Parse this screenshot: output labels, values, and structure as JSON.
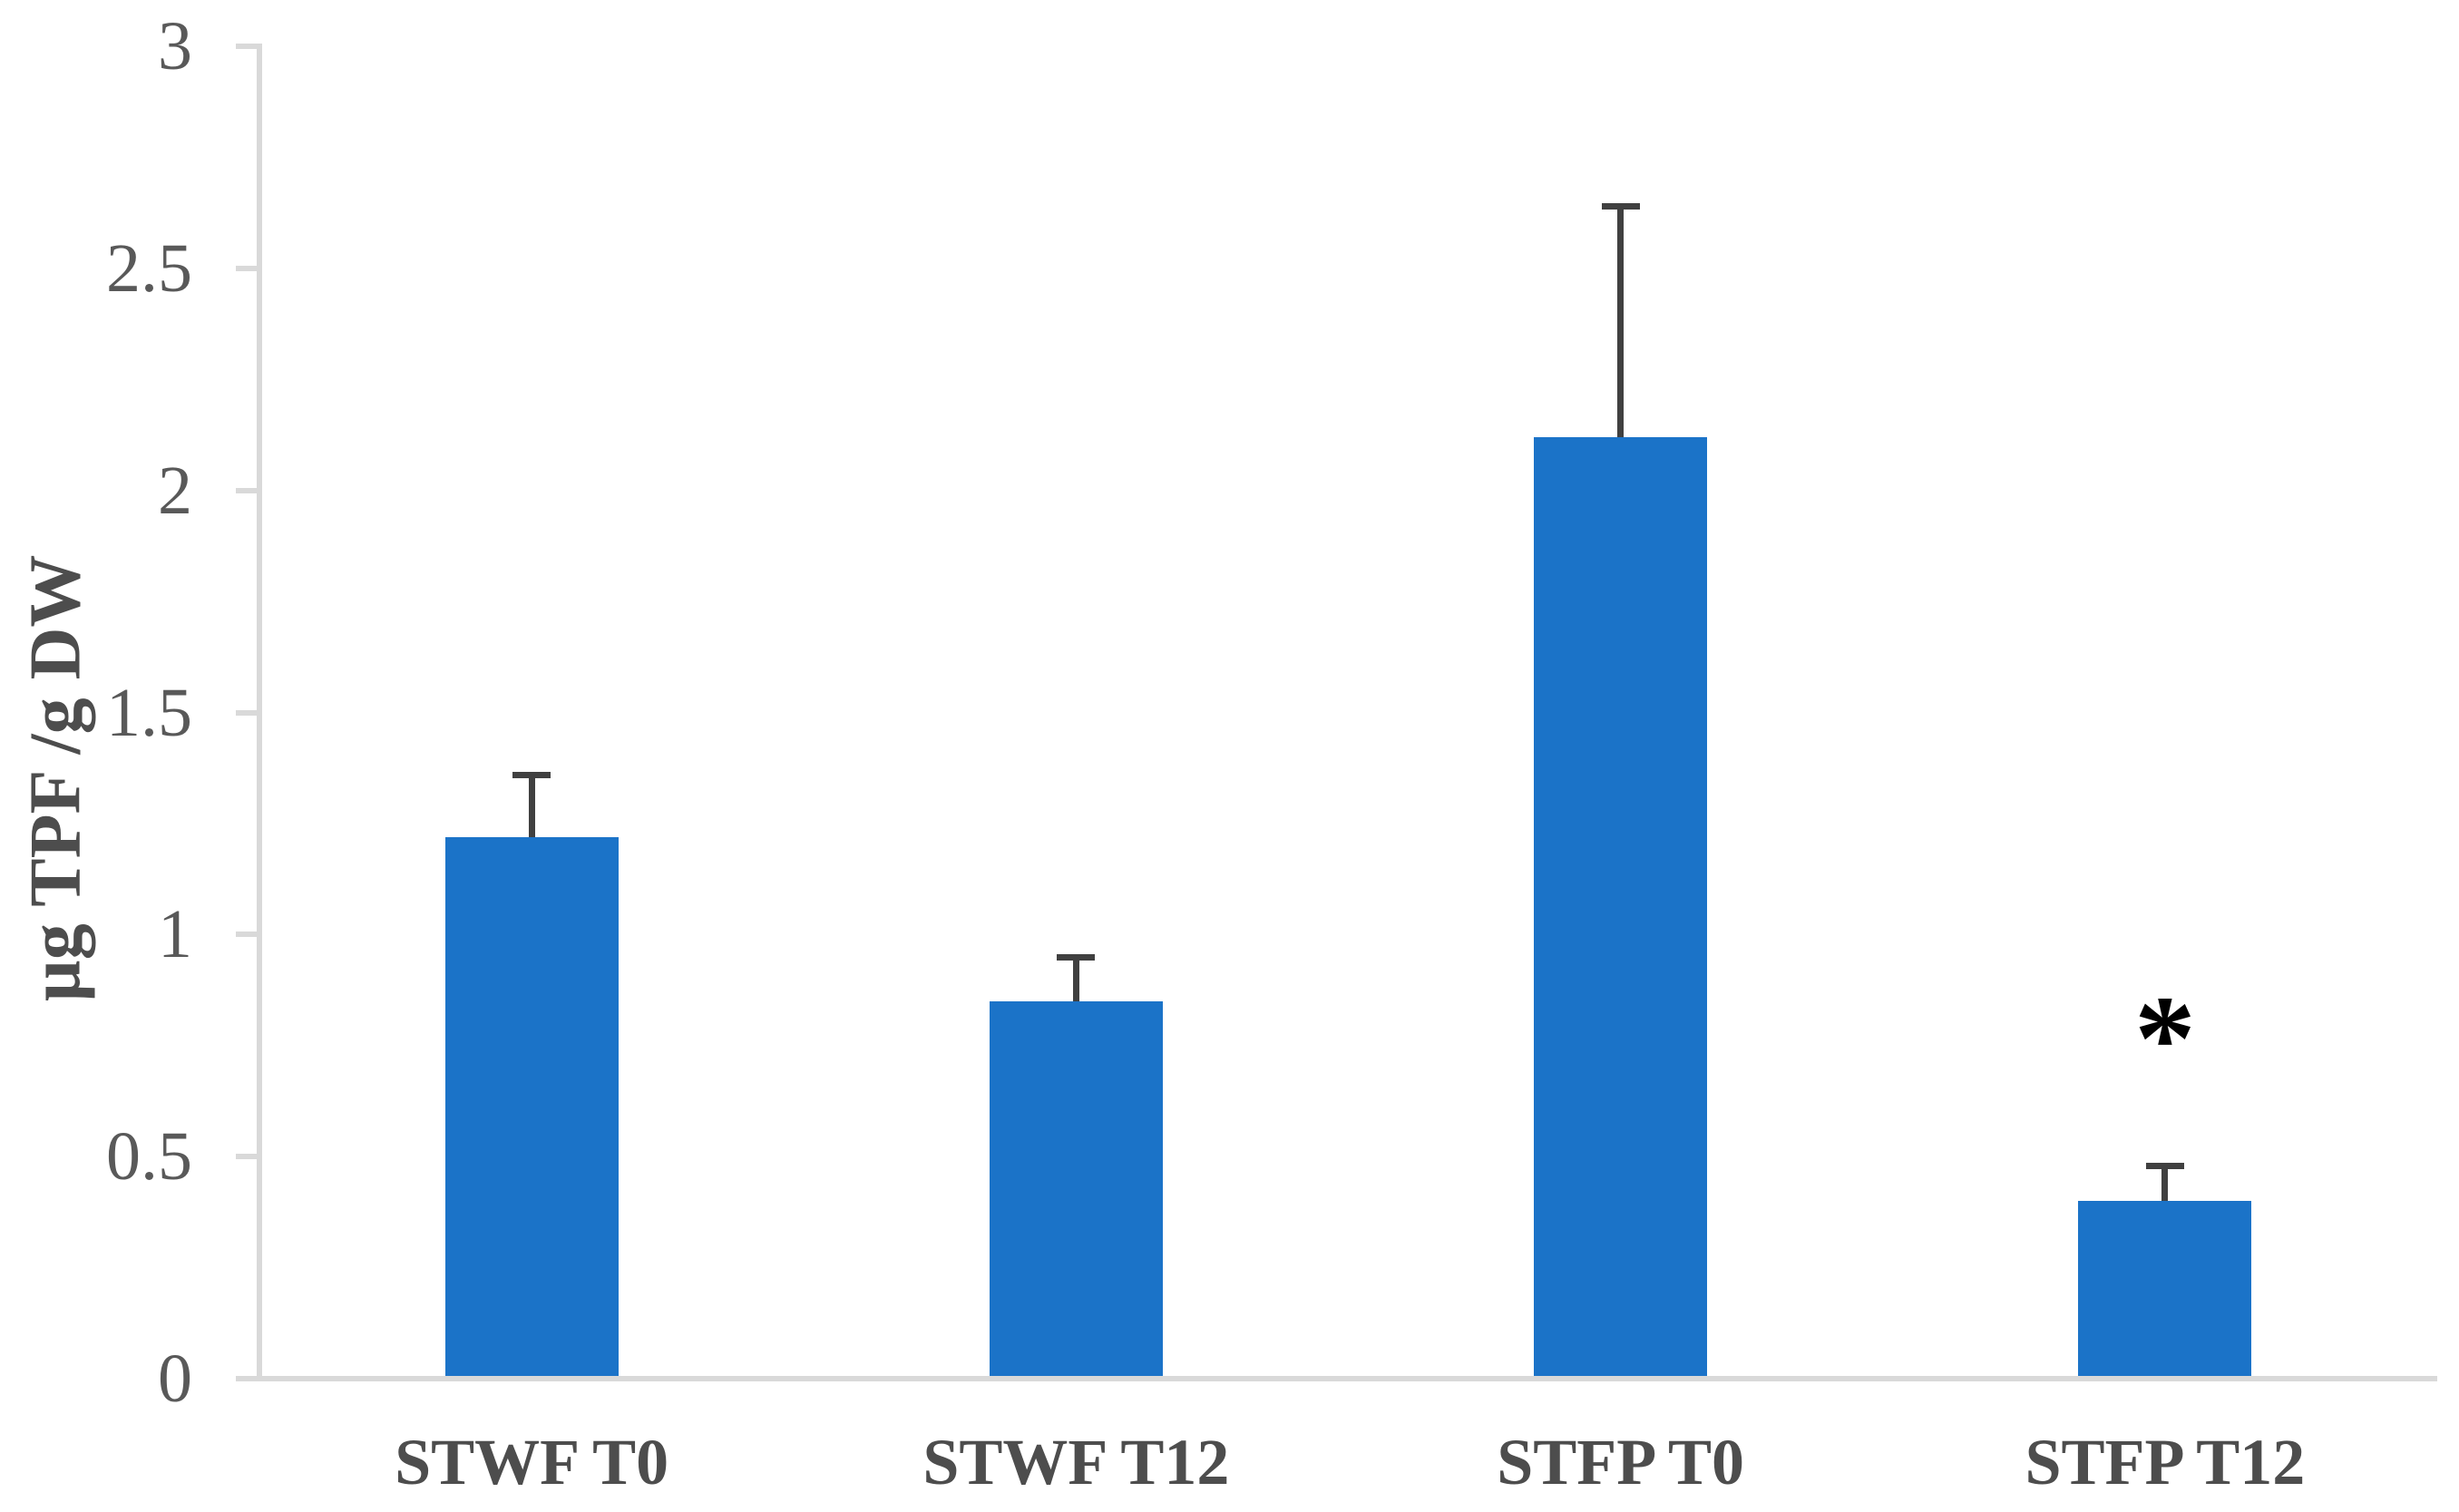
{
  "chart_data": {
    "type": "bar",
    "title": "",
    "xlabel": "",
    "ylabel": "µg TPF /g DW",
    "categories": [
      "STWF T0",
      "STWF T12",
      "STFP T0",
      "STFP T12"
    ],
    "values": [
      1.22,
      0.85,
      2.12,
      0.4
    ],
    "error_plus": [
      0.14,
      0.1,
      0.52,
      0.08
    ],
    "ylim": [
      0,
      3
    ],
    "ytick_step": 0.5,
    "ytick_labels": [
      "0",
      "0.5",
      "1",
      "1.5",
      "2",
      "2.5",
      "3"
    ],
    "grid": false,
    "legend": "none",
    "annotations": [
      {
        "text": "*",
        "category_index": 3,
        "y_value": 0.83
      }
    ],
    "colors": {
      "bar": "#1B73C8",
      "error_bar": "#404040",
      "axis": "#D9D9D9",
      "tick_text": "#595959",
      "label_text": "#4D4D4D",
      "annotation": "#000000"
    }
  }
}
